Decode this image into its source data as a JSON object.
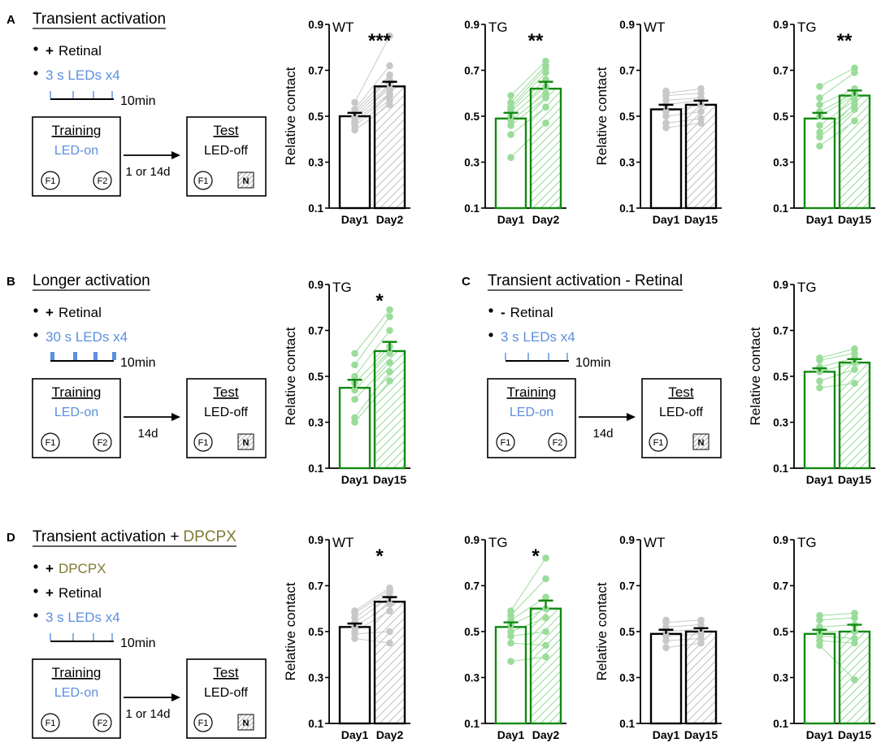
{
  "colors": {
    "black": "#000000",
    "green": "#128a12",
    "light_green": "#9bdc9b",
    "gray_point": "#c8c8c8",
    "gray_hatch": "#c4c4c4",
    "blue": "#5b8fdf",
    "olive": "#7f7a32"
  },
  "panels": {
    "A": {
      "letter": "A",
      "title": "Transient activation",
      "bullets": [
        {
          "sign": "+",
          "text": "Retinal",
          "color": "black"
        },
        {
          "sign": "",
          "text": "3 s LEDs x4",
          "color": "blue"
        }
      ],
      "timeline_label": "10min",
      "training": {
        "title": "Training",
        "status": "LED-on",
        "f1": "F1",
        "f2": "F2"
      },
      "test": {
        "title": "Test",
        "status": "LED-off",
        "f1": "F1",
        "n": "N"
      },
      "interval": "1 or 14d"
    },
    "B": {
      "letter": "B",
      "title": "Longer activation",
      "bullets": [
        {
          "sign": "+",
          "text": "Retinal",
          "color": "black"
        },
        {
          "sign": "",
          "text": "30 s LEDs x4",
          "color": "blue"
        }
      ],
      "timeline_label": "10min",
      "training": {
        "title": "Training",
        "status": "LED-on",
        "f1": "F1",
        "f2": "F2"
      },
      "test": {
        "title": "Test",
        "status": "LED-off",
        "f1": "F1",
        "n": "N"
      },
      "interval": "14d"
    },
    "C": {
      "letter": "C",
      "title": "Transient activation - Retinal",
      "bullets": [
        {
          "sign": "-",
          "text": "Retinal",
          "color": "black"
        },
        {
          "sign": "",
          "text": "3 s LEDs x4",
          "color": "blue"
        }
      ],
      "timeline_label": "10min",
      "training": {
        "title": "Training",
        "status": "LED-on",
        "f1": "F1",
        "f2": "F2"
      },
      "test": {
        "title": "Test",
        "status": "LED-off",
        "f1": "F1",
        "n": "N"
      },
      "interval": "14d"
    },
    "D": {
      "letter": "D",
      "title": "Transient activation + ",
      "title_highlight": "DPCPX",
      "bullets": [
        {
          "sign": "+",
          "text": "DPCPX",
          "color": "olive"
        },
        {
          "sign": "+",
          "text": "Retinal",
          "color": "black"
        },
        {
          "sign": "",
          "text": "3 s LEDs x4",
          "color": "blue"
        }
      ],
      "timeline_label": "10min",
      "training": {
        "title": "Training",
        "status": "LED-on",
        "f1": "F1",
        "f2": "F2"
      },
      "test": {
        "title": "Test",
        "status": "LED-off",
        "f1": "F1",
        "n": "N"
      },
      "interval": "1 or 14d"
    }
  },
  "chart_data": [
    {
      "id": "A1",
      "type": "bar",
      "genotype": "WT",
      "significance": "***",
      "ylabel": "Relative contact",
      "ylim": [
        0.1,
        0.9
      ],
      "yticks": [
        0.1,
        0.3,
        0.5,
        0.7,
        0.9
      ],
      "categories": [
        "Day1",
        "Day2"
      ],
      "values": [
        0.5,
        0.63
      ],
      "sem": [
        0.015,
        0.02
      ],
      "points": [
        [
          0.44,
          0.46,
          0.47,
          0.48,
          0.49,
          0.5,
          0.51,
          0.52,
          0.53,
          0.56
        ],
        [
          0.55,
          0.57,
          0.59,
          0.6,
          0.62,
          0.64,
          0.66,
          0.68,
          0.72,
          0.85
        ]
      ]
    },
    {
      "id": "A2",
      "type": "bar",
      "genotype": "TG",
      "significance": "**",
      "ylabel": "",
      "ylim": [
        0.1,
        0.9
      ],
      "yticks": [
        0.1,
        0.3,
        0.5,
        0.7,
        0.9
      ],
      "categories": [
        "Day1",
        "Day2"
      ],
      "values": [
        0.49,
        0.62
      ],
      "sem": [
        0.025,
        0.03
      ],
      "points": [
        [
          0.32,
          0.42,
          0.46,
          0.48,
          0.5,
          0.52,
          0.53,
          0.54,
          0.56,
          0.59
        ],
        [
          0.47,
          0.54,
          0.58,
          0.6,
          0.63,
          0.66,
          0.69,
          0.71,
          0.72,
          0.74
        ]
      ]
    },
    {
      "id": "A3",
      "type": "bar",
      "genotype": "WT",
      "significance": "",
      "ylabel": "Relative contact",
      "ylim": [
        0.1,
        0.9
      ],
      "yticks": [
        0.1,
        0.3,
        0.5,
        0.7,
        0.9
      ],
      "categories": [
        "Day1",
        "Day15"
      ],
      "values": [
        0.53,
        0.55
      ],
      "sem": [
        0.02,
        0.018
      ],
      "points": [
        [
          0.45,
          0.47,
          0.5,
          0.52,
          0.55,
          0.57,
          0.59,
          0.6,
          0.61
        ],
        [
          0.47,
          0.49,
          0.52,
          0.55,
          0.57,
          0.58,
          0.6,
          0.62
        ]
      ]
    },
    {
      "id": "A4",
      "type": "bar",
      "genotype": "TG",
      "significance": "**",
      "ylabel": "",
      "ylim": [
        0.1,
        0.9
      ],
      "yticks": [
        0.1,
        0.3,
        0.5,
        0.7,
        0.9
      ],
      "categories": [
        "Day1",
        "Day15"
      ],
      "values": [
        0.49,
        0.59
      ],
      "sem": [
        0.025,
        0.022
      ],
      "points": [
        [
          0.37,
          0.41,
          0.43,
          0.46,
          0.5,
          0.52,
          0.55,
          0.58,
          0.63
        ],
        [
          0.48,
          0.53,
          0.55,
          0.57,
          0.59,
          0.6,
          0.62,
          0.69,
          0.71
        ]
      ]
    },
    {
      "id": "B1",
      "type": "bar",
      "genotype": "TG",
      "significance": "*",
      "ylabel": "Relative contact",
      "ylim": [
        0.1,
        0.9
      ],
      "yticks": [
        0.1,
        0.3,
        0.5,
        0.7,
        0.9
      ],
      "categories": [
        "Day1",
        "Day15"
      ],
      "values": [
        0.45,
        0.61
      ],
      "sem": [
        0.035,
        0.04
      ],
      "points": [
        [
          0.3,
          0.32,
          0.4,
          0.44,
          0.47,
          0.5,
          0.55,
          0.6
        ],
        [
          0.48,
          0.52,
          0.56,
          0.6,
          0.63,
          0.7,
          0.76,
          0.79
        ]
      ]
    },
    {
      "id": "C1",
      "type": "bar",
      "genotype": "TG",
      "significance": "",
      "ylabel": "Relative contact",
      "ylim": [
        0.1,
        0.9
      ],
      "yticks": [
        0.1,
        0.3,
        0.5,
        0.7,
        0.9
      ],
      "categories": [
        "Day1",
        "Day15"
      ],
      "values": [
        0.52,
        0.56
      ],
      "sem": [
        0.015,
        0.015
      ],
      "points": [
        [
          0.45,
          0.48,
          0.52,
          0.54,
          0.57,
          0.58
        ],
        [
          0.47,
          0.53,
          0.56,
          0.58,
          0.6,
          0.62
        ]
      ]
    },
    {
      "id": "D1",
      "type": "bar",
      "genotype": "WT",
      "significance": "*",
      "ylabel": "Relative contact",
      "ylim": [
        0.1,
        0.9
      ],
      "yticks": [
        0.1,
        0.3,
        0.5,
        0.7,
        0.9
      ],
      "categories": [
        "Day1",
        "Day2"
      ],
      "values": [
        0.52,
        0.63
      ],
      "sem": [
        0.015,
        0.02
      ],
      "points": [
        [
          0.47,
          0.49,
          0.5,
          0.52,
          0.54,
          0.56,
          0.58,
          0.59
        ],
        [
          0.45,
          0.5,
          0.59,
          0.62,
          0.65,
          0.67,
          0.68,
          0.69
        ]
      ]
    },
    {
      "id": "D2",
      "type": "bar",
      "genotype": "TG",
      "significance": "*",
      "ylabel": "",
      "ylim": [
        0.1,
        0.9
      ],
      "yticks": [
        0.1,
        0.3,
        0.5,
        0.7,
        0.9
      ],
      "categories": [
        "Day1",
        "Day2"
      ],
      "values": [
        0.52,
        0.6
      ],
      "sem": [
        0.02,
        0.035
      ],
      "points": [
        [
          0.37,
          0.45,
          0.48,
          0.5,
          0.53,
          0.55,
          0.57,
          0.59
        ],
        [
          0.39,
          0.44,
          0.5,
          0.56,
          0.6,
          0.65,
          0.73,
          0.82
        ]
      ]
    },
    {
      "id": "D3",
      "type": "bar",
      "genotype": "WT",
      "significance": "",
      "ylabel": "Relative contact",
      "ylim": [
        0.1,
        0.9
      ],
      "yticks": [
        0.1,
        0.3,
        0.5,
        0.7,
        0.9
      ],
      "categories": [
        "Day1",
        "Day15"
      ],
      "values": [
        0.49,
        0.5
      ],
      "sem": [
        0.018,
        0.015
      ],
      "points": [
        [
          0.43,
          0.46,
          0.48,
          0.5,
          0.52,
          0.54,
          0.55
        ],
        [
          0.45,
          0.47,
          0.49,
          0.51,
          0.53,
          0.55
        ]
      ]
    },
    {
      "id": "D4",
      "type": "bar",
      "genotype": "TG",
      "significance": "",
      "ylabel": "",
      "ylim": [
        0.1,
        0.9
      ],
      "yticks": [
        0.1,
        0.3,
        0.5,
        0.7,
        0.9
      ],
      "categories": [
        "Day1",
        "Day15"
      ],
      "values": [
        0.49,
        0.5
      ],
      "sem": [
        0.018,
        0.03
      ],
      "points": [
        [
          0.44,
          0.46,
          0.48,
          0.5,
          0.52,
          0.55,
          0.57
        ],
        [
          0.29,
          0.45,
          0.47,
          0.5,
          0.53,
          0.56,
          0.58
        ]
      ]
    }
  ]
}
